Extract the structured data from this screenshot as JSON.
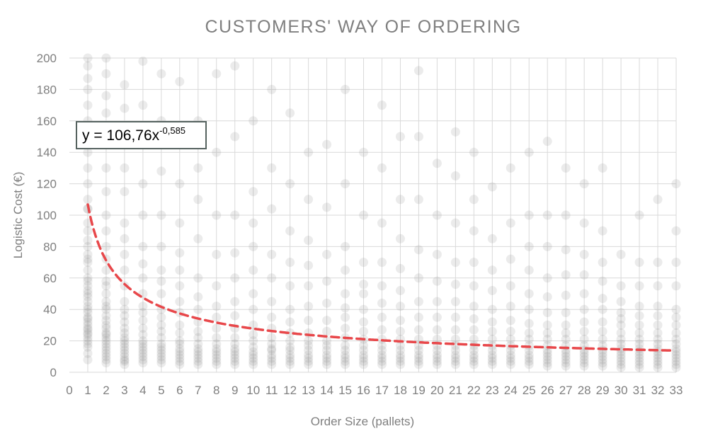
{
  "chart_data": {
    "type": "scatter",
    "title": "CUSTOMERS' WAY OF ORDERING",
    "xlabel": "Order Size (pallets)",
    "ylabel": "Logistic Cost (€)",
    "xlim": [
      0,
      33
    ],
    "ylim": [
      0,
      200
    ],
    "x_ticks": [
      0,
      1,
      2,
      3,
      4,
      5,
      6,
      7,
      8,
      9,
      10,
      11,
      12,
      13,
      14,
      15,
      16,
      17,
      18,
      19,
      20,
      21,
      22,
      23,
      24,
      25,
      26,
      27,
      28,
      29,
      30,
      31,
      32,
      33
    ],
    "y_ticks": [
      0,
      20,
      40,
      60,
      80,
      100,
      120,
      140,
      160,
      180,
      200
    ],
    "grid": true,
    "legend": "none",
    "colors": {
      "points": "#808080",
      "trendline": "#e8474a",
      "grid": "#d9d9d9",
      "text": "#7f7f7f"
    },
    "trendline": {
      "type": "power",
      "a": 106.76,
      "b": -0.585,
      "x_range": [
        1,
        33
      ],
      "equation_label": {
        "base": "y = 106,76x",
        "exponent": "-0,585"
      }
    },
    "points": {
      "1": [
        8,
        12,
        16,
        18,
        20,
        22,
        24,
        25,
        27,
        28,
        30,
        32,
        34,
        35,
        38,
        40,
        42,
        45,
        48,
        50,
        52,
        55,
        58,
        60,
        65,
        70,
        72,
        75,
        80,
        84,
        90,
        95,
        104,
        104,
        110,
        120,
        130,
        140,
        150,
        160,
        170,
        180,
        187,
        195,
        200
      ],
      "2": [
        6,
        8,
        10,
        12,
        14,
        16,
        18,
        20,
        22,
        24,
        25,
        28,
        30,
        33,
        36,
        40,
        42,
        45,
        50,
        55,
        58,
        65,
        72,
        80,
        90,
        100,
        115,
        130,
        150,
        165,
        176,
        190,
        200
      ],
      "3": [
        5,
        7,
        8,
        10,
        12,
        14,
        16,
        18,
        20,
        22,
        25,
        28,
        32,
        36,
        40,
        45,
        55,
        65,
        75,
        85,
        95,
        115,
        130,
        150,
        168,
        183
      ],
      "4": [
        6,
        8,
        10,
        12,
        14,
        16,
        18,
        20,
        24,
        28,
        33,
        38,
        42,
        50,
        60,
        69,
        80,
        100,
        120,
        145,
        170,
        198
      ],
      "5": [
        6,
        8,
        10,
        12,
        14,
        16,
        18,
        22,
        26,
        30,
        35,
        40,
        50,
        58,
        65,
        80,
        100,
        128,
        160,
        190
      ],
      "6": [
        5,
        7,
        9,
        11,
        13,
        15,
        18,
        20,
        25,
        30,
        38,
        45,
        55,
        65,
        76,
        95,
        120,
        150,
        185
      ],
      "7": [
        5,
        7,
        9,
        11,
        13,
        15,
        18,
        22,
        26,
        32,
        40,
        48,
        60,
        85,
        110,
        130,
        160
      ],
      "8": [
        5,
        7,
        9,
        11,
        13,
        15,
        18,
        22,
        28,
        35,
        42,
        55,
        75,
        100,
        140,
        190
      ],
      "9": [
        5,
        7,
        9,
        11,
        13,
        15,
        18,
        22,
        28,
        36,
        45,
        60,
        76,
        100,
        150,
        195
      ],
      "10": [
        5,
        7,
        9,
        11,
        13,
        16,
        20,
        24,
        30,
        40,
        50,
        65,
        80,
        95,
        115,
        160
      ],
      "11": [
        5,
        7,
        9,
        11,
        14,
        15,
        18,
        22,
        28,
        35,
        45,
        60,
        75,
        104,
        130,
        180
      ],
      "12": [
        5,
        7,
        9,
        11,
        14,
        16,
        20,
        25,
        32,
        40,
        55,
        70,
        90,
        120,
        165
      ],
      "13": [
        5,
        7,
        9,
        11,
        14,
        17,
        20,
        25,
        33,
        42,
        55,
        68,
        84,
        110,
        140
      ],
      "14": [
        5,
        7,
        9,
        11,
        14,
        17,
        20,
        26,
        33,
        44,
        58,
        75,
        105,
        145
      ],
      "15": [
        5,
        7,
        9,
        11,
        14,
        17,
        22,
        28,
        35,
        41,
        50,
        65,
        80,
        120,
        180
      ],
      "16": [
        5,
        7,
        9,
        11,
        14,
        17,
        21,
        26,
        32,
        40,
        50,
        56,
        70,
        100,
        140
      ],
      "17": [
        5,
        7,
        9,
        11,
        14,
        17,
        21,
        27,
        35,
        44,
        55,
        70,
        95,
        130,
        170
      ],
      "18": [
        5,
        7,
        9,
        11,
        14,
        17,
        21,
        26,
        33,
        42,
        52,
        66,
        85,
        110,
        150
      ],
      "19": [
        5,
        7,
        9,
        11,
        14,
        17,
        21,
        27,
        35,
        45,
        60,
        78,
        110,
        150,
        192
      ],
      "20": [
        5,
        7,
        9,
        11,
        14,
        17,
        21,
        27,
        35,
        45,
        58,
        75,
        100,
        133
      ],
      "21": [
        5,
        7,
        9,
        11,
        14,
        17,
        21,
        27,
        35,
        45,
        56,
        70,
        95,
        125,
        153
      ],
      "22": [
        5,
        7,
        9,
        11,
        14,
        17,
        21,
        27,
        34,
        42,
        55,
        70,
        90,
        110,
        140
      ],
      "23": [
        5,
        7,
        9,
        11,
        14,
        17,
        21,
        26,
        32,
        40,
        52,
        65,
        85,
        118
      ],
      "24": [
        5,
        7,
        9,
        11,
        14,
        17,
        21,
        26,
        33,
        42,
        55,
        72,
        95,
        130
      ],
      "25": [
        5,
        7,
        9,
        11,
        14,
        17,
        21,
        25,
        31,
        40,
        50,
        65,
        80,
        100,
        140
      ],
      "26": [
        4,
        6,
        8,
        10,
        12,
        14,
        17,
        21,
        25,
        30,
        38,
        48,
        60,
        80,
        100,
        147
      ],
      "27": [
        4,
        6,
        8,
        10,
        12,
        14,
        17,
        21,
        25,
        30,
        38,
        49,
        62,
        78,
        100,
        130
      ],
      "28": [
        4,
        6,
        8,
        10,
        12,
        14,
        17,
        21,
        26,
        32,
        40,
        50,
        62,
        75,
        95,
        120
      ],
      "29": [
        4,
        6,
        8,
        10,
        12,
        14,
        17,
        21,
        26,
        32,
        40,
        47,
        58,
        70,
        90,
        130
      ],
      "30": [
        3,
        5,
        7,
        9,
        11,
        13,
        15,
        18,
        21,
        25,
        30,
        34,
        38,
        45,
        55,
        75
      ],
      "31": [
        3,
        5,
        7,
        9,
        11,
        13,
        15,
        18,
        21,
        25,
        30,
        36,
        42,
        55,
        70,
        100
      ],
      "32": [
        3,
        5,
        7,
        9,
        11,
        13,
        15,
        18,
        21,
        25,
        30,
        36,
        42,
        55,
        70,
        110
      ],
      "33": [
        3,
        5,
        7,
        9,
        11,
        13,
        15,
        18,
        21,
        25,
        30,
        35,
        40,
        55,
        70,
        90,
        120
      ]
    }
  }
}
